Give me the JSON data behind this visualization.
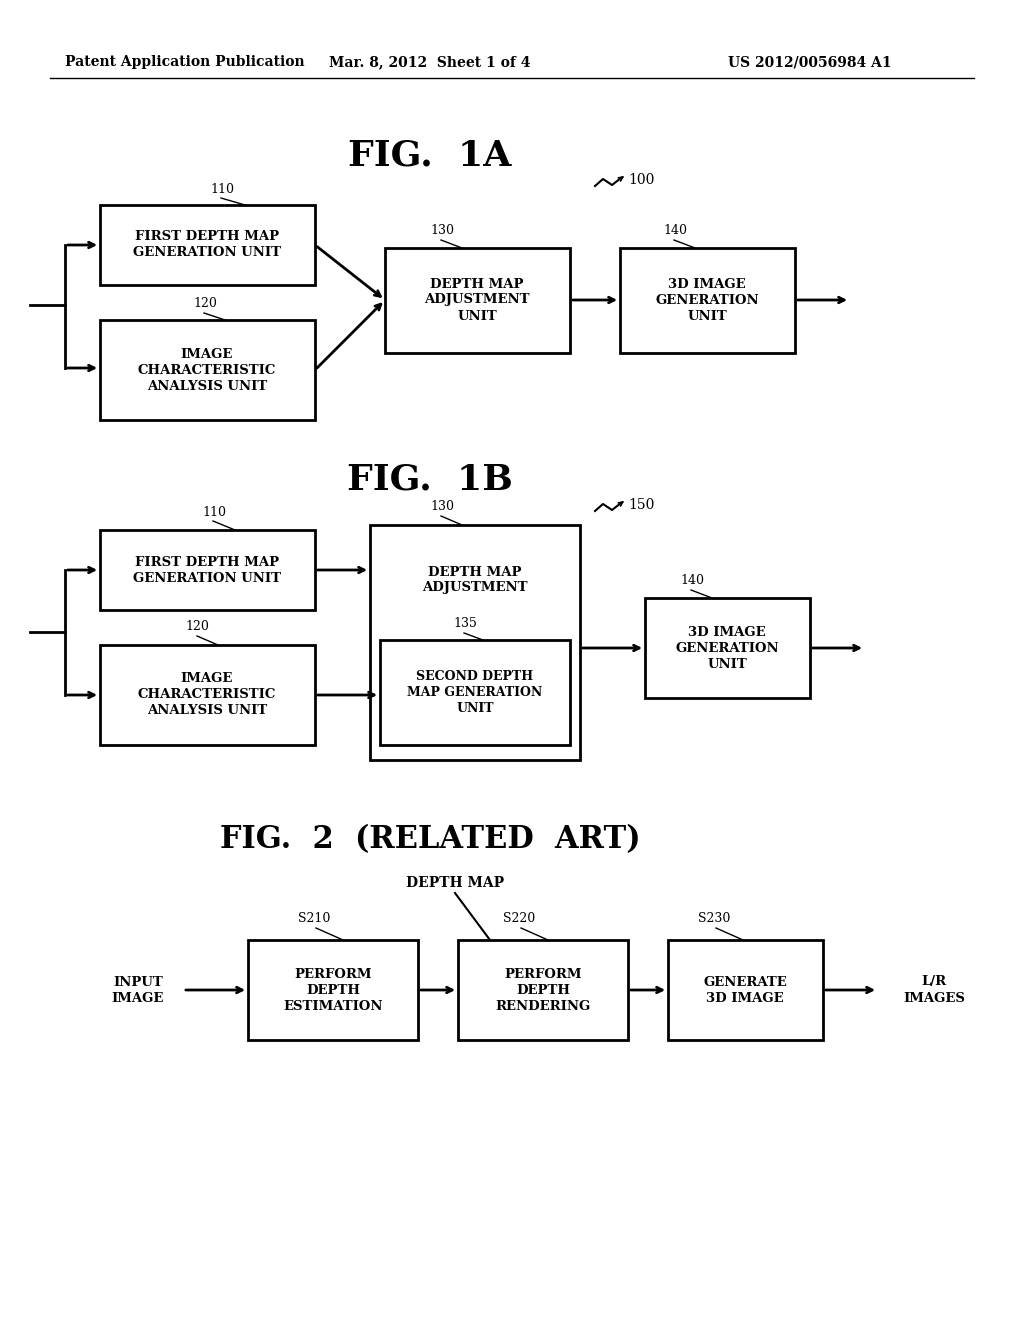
{
  "bg_color": "#ffffff",
  "header_left": "Patent Application Publication",
  "header_mid": "Mar. 8, 2012  Sheet 1 of 4",
  "header_right": "US 2012/0056984 A1",
  "fig1a_title": "FIG.  1A",
  "fig1b_title": "FIG.  1B",
  "fig2_title": "FIG.  2  (RELATED  ART)",
  "fig1a_ref": "100",
  "fig1b_ref": "150",
  "depth_map_label": "DEPTH MAP"
}
